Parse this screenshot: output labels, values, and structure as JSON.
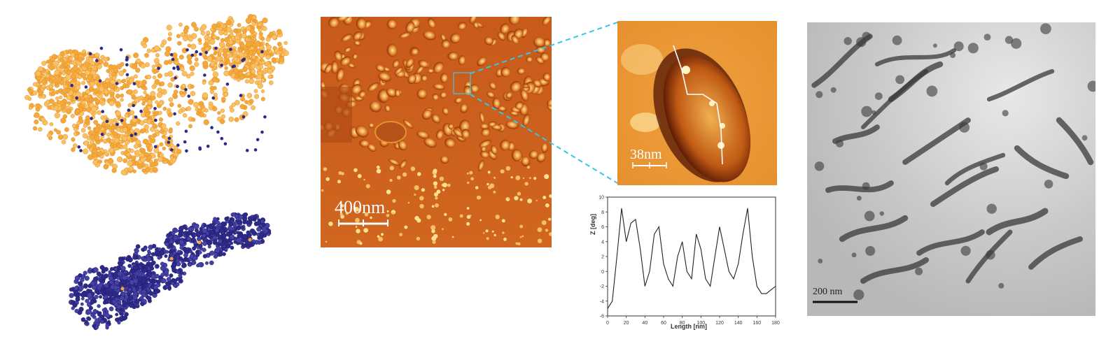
{
  "afm_large": {
    "scale_label": "400nm"
  },
  "afm_zoom": {
    "scale_label": "38nm"
  },
  "tem": {
    "scale_label": "200 nm"
  },
  "chart_data": {
    "type": "line",
    "xlabel": "Length [nm]",
    "ylabel": "Z [deg]",
    "xlim": [
      0,
      180
    ],
    "ylim": [
      -6,
      10
    ],
    "x_ticks": [
      0,
      20,
      40,
      60,
      80,
      100,
      120,
      140,
      160,
      180
    ],
    "y_ticks": [
      -6,
      -4,
      -2,
      0,
      2,
      4,
      6,
      8,
      10
    ],
    "series": [
      {
        "x": [
          0,
          5,
          10,
          15,
          20,
          25,
          30,
          35,
          40,
          45,
          50,
          55,
          60,
          65,
          70,
          75,
          80,
          85,
          90,
          95,
          100,
          105,
          110,
          115,
          120,
          125,
          130,
          135,
          140,
          145,
          150,
          155,
          160,
          165,
          170,
          175,
          180
        ],
        "y": [
          -5,
          -4,
          2,
          8.5,
          4,
          6.5,
          7,
          3,
          -2,
          0,
          5,
          6,
          1,
          -1,
          -2,
          2,
          4,
          0,
          -1,
          5,
          3,
          -1,
          -2,
          2,
          6,
          3,
          0,
          -1,
          1,
          5,
          8.5,
          2,
          -2,
          -3,
          -3,
          -2.5,
          -2
        ]
      }
    ]
  },
  "colors": {
    "mol_orange": "#f5a93a",
    "mol_blue": "#2e2a8a",
    "afm_bg": "#c8581a",
    "afm_blob": "#f0a040",
    "link": "#30c8e8"
  }
}
